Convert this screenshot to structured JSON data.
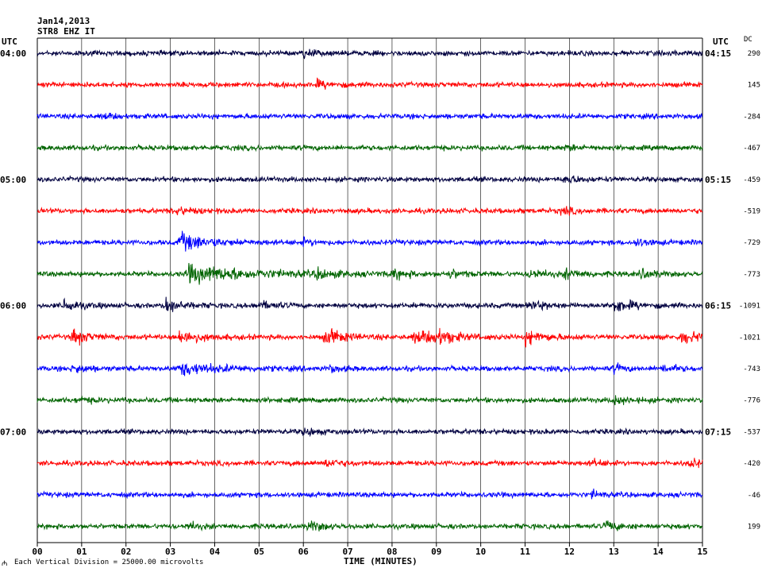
{
  "header": {
    "date": "Jan14,2013",
    "station": "STR8 EHZ IT"
  },
  "chart_data": {
    "type": "line",
    "xlabel": "TIME (MINUTES)",
    "x_ticks": [
      "00",
      "01",
      "02",
      "03",
      "04",
      "05",
      "06",
      "07",
      "08",
      "09",
      "10",
      "11",
      "12",
      "13",
      "14",
      "15"
    ],
    "xlim": [
      0,
      15
    ],
    "left_axis_title": "UTC",
    "right_axis_title": "UTC",
    "dc_title": "DC",
    "footer_note": "Each Vertical Division = 25000.00 microvolts",
    "footer_mark": "₼",
    "trace_colors": [
      "#000040",
      "#ff0000",
      "#0000ff",
      "#006400"
    ],
    "traces": [
      {
        "dc": "290",
        "left": "04:00",
        "right": "04:15",
        "events": [
          [
            6.0,
            1.8,
            0.2
          ]
        ]
      },
      {
        "dc": "145",
        "events": [
          [
            6.3,
            1.4,
            0.3
          ]
        ]
      },
      {
        "dc": "-284",
        "events": [
          [
            1.5,
            1.1,
            0.2
          ]
        ]
      },
      {
        "dc": "-467",
        "events": [
          [
            11.9,
            1.2,
            0.2
          ]
        ]
      },
      {
        "dc": "-459",
        "left": "05:00",
        "right": "05:15",
        "events": [
          [
            11.9,
            1.6,
            0.3
          ]
        ]
      },
      {
        "dc": "-519",
        "events": [
          [
            11.8,
            1.3,
            0.3
          ],
          [
            3.1,
            1.6,
            0.3
          ]
        ]
      },
      {
        "dc": "-729",
        "events": [
          [
            3.2,
            3.5,
            0.6
          ],
          [
            6.0,
            1.2,
            0.2
          ],
          [
            13.5,
            1.4,
            0.3
          ]
        ]
      },
      {
        "dc": "-773",
        "events": [
          [
            3.4,
            3.2,
            1.4
          ],
          [
            6.3,
            1.6,
            0.3
          ],
          [
            8.0,
            1.8,
            0.3
          ],
          [
            9.3,
            1.4,
            0.3
          ],
          [
            11.1,
            1.8,
            0.3
          ],
          [
            11.9,
            2.0,
            0.3
          ],
          [
            13.6,
            1.6,
            0.3
          ]
        ]
      },
      {
        "dc": "-1091",
        "left": "06:00",
        "right": "06:15",
        "events": [
          [
            0.6,
            2.4,
            0.3
          ],
          [
            2.9,
            2.8,
            0.3
          ],
          [
            5.0,
            1.6,
            0.3
          ],
          [
            11.1,
            2.0,
            0.3
          ],
          [
            13.0,
            2.6,
            0.4
          ]
        ]
      },
      {
        "dc": "-1021",
        "events": [
          [
            0.8,
            3.0,
            0.3
          ],
          [
            3.2,
            3.0,
            0.4
          ],
          [
            6.5,
            3.0,
            0.4
          ],
          [
            8.5,
            2.6,
            0.6
          ],
          [
            9.0,
            2.6,
            0.3
          ],
          [
            11.0,
            2.6,
            0.4
          ],
          [
            14.5,
            2.2,
            0.5
          ]
        ]
      },
      {
        "dc": "-743",
        "events": [
          [
            0.8,
            1.8,
            0.3
          ],
          [
            3.2,
            2.4,
            0.8
          ],
          [
            6.6,
            1.4,
            0.2
          ],
          [
            13.0,
            1.6,
            0.2
          ],
          [
            14.1,
            1.4,
            0.3
          ]
        ]
      },
      {
        "dc": "-776",
        "events": [
          [
            13.0,
            1.6,
            0.3
          ],
          [
            0.9,
            1.0,
            0.3
          ]
        ]
      },
      {
        "dc": "-537",
        "left": "07:00",
        "right": "07:15",
        "events": [
          [
            6.0,
            1.4,
            0.3
          ]
        ]
      },
      {
        "dc": "-420",
        "events": [
          [
            6.5,
            1.6,
            0.3
          ],
          [
            12.5,
            1.3,
            0.2
          ],
          [
            14.7,
            1.4,
            0.4
          ]
        ]
      },
      {
        "dc": "-46",
        "events": [
          [
            12.5,
            1.4,
            0.2
          ]
        ]
      },
      {
        "dc": "199",
        "events": [
          [
            3.4,
            1.6,
            0.2
          ],
          [
            6.1,
            2.0,
            0.3
          ],
          [
            12.8,
            1.8,
            0.3
          ]
        ]
      }
    ]
  }
}
